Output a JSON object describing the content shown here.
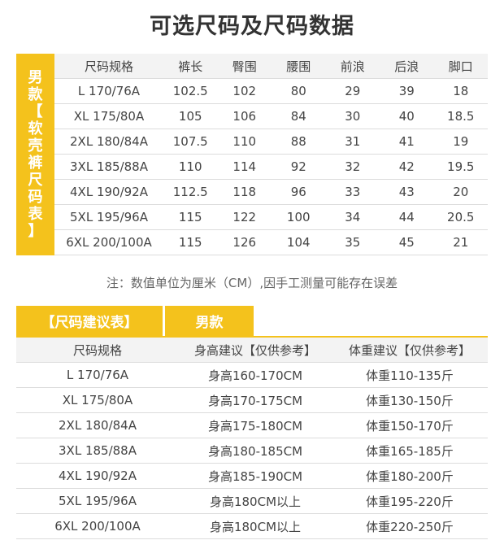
{
  "title": "可选尺码及尺码数据",
  "size_table": {
    "side_label": [
      "男",
      "款",
      "【",
      "软",
      "壳",
      "裤",
      "尺",
      "码",
      "表",
      "】"
    ],
    "headers": [
      "尺码规格",
      "裤长",
      "臀围",
      "腰围",
      "前浪",
      "后浪",
      "脚口"
    ],
    "rows": [
      [
        "L 170/76A",
        "102.5",
        "102",
        "80",
        "29",
        "39",
        "18"
      ],
      [
        "XL 175/80A",
        "105",
        "106",
        "84",
        "30",
        "40",
        "18.5"
      ],
      [
        "2XL 180/84A",
        "107.5",
        "110",
        "88",
        "31",
        "41",
        "19"
      ],
      [
        "3XL 185/88A",
        "110",
        "114",
        "92",
        "32",
        "42",
        "19.5"
      ],
      [
        "4XL 190/92A",
        "112.5",
        "118",
        "96",
        "33",
        "43",
        "20"
      ],
      [
        "5XL 195/96A",
        "115",
        "122",
        "100",
        "34",
        "44",
        "20.5"
      ],
      [
        "6XL 200/100A",
        "115",
        "126",
        "104",
        "35",
        "45",
        "21"
      ]
    ]
  },
  "note": "注：数值单位为厘米（CM）,因手工测量可能存在误差",
  "suggest_table": {
    "tab_title": "【尺码建议表】",
    "tab_gender": "男款",
    "headers": [
      "尺码规格",
      "身高建议【仅供参考】",
      "体重建议【仅供参考】"
    ],
    "rows": [
      [
        "L 170/76A",
        "身高160-170CM",
        "体重110-135斤"
      ],
      [
        "XL 175/80A",
        "身高170-175CM",
        "体重130-150斤"
      ],
      [
        "2XL 180/84A",
        "身高175-180CM",
        "体重150-170斤"
      ],
      [
        "3XL 185/88A",
        "身高180-185CM",
        "体重165-185斤"
      ],
      [
        "4XL 190/92A",
        "身高185-190CM",
        "体重180-200斤"
      ],
      [
        "5XL 195/96A",
        "身高180CM以上",
        "体重195-220斤"
      ],
      [
        "6XL 200/100A",
        "身高180CM以上",
        "体重220-250斤"
      ]
    ]
  },
  "colors": {
    "accent": "#f4c21c",
    "header_bg": "#f3f3f3",
    "rule": "#dcdcdc"
  }
}
